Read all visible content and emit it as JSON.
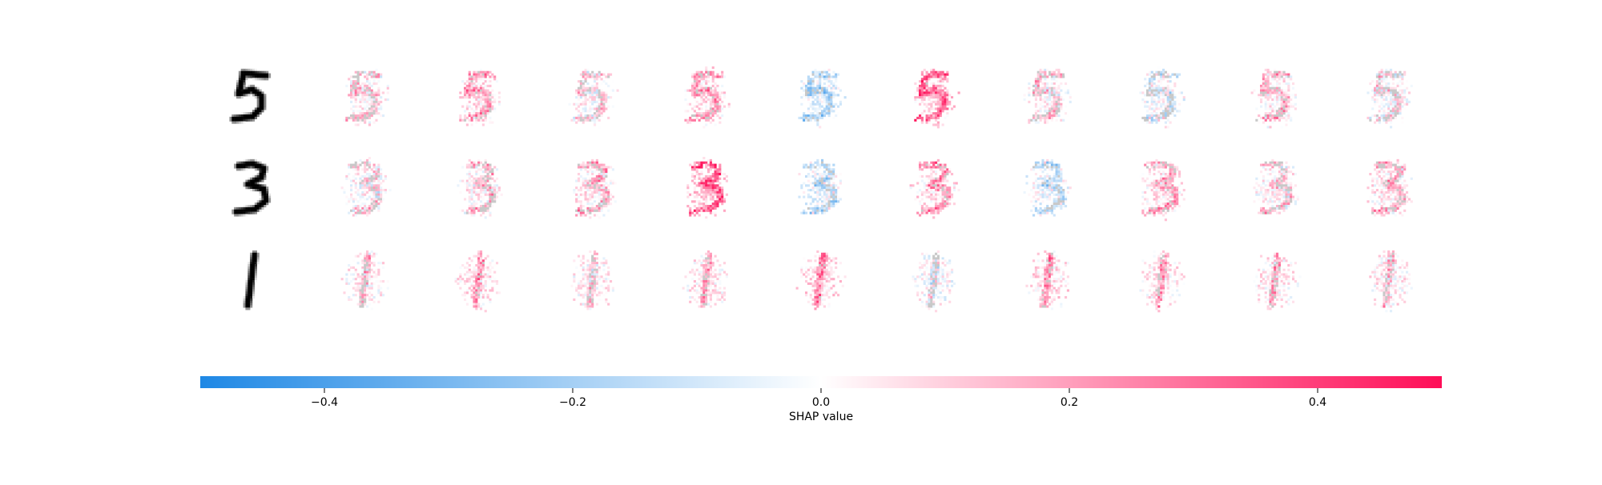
{
  "chart_data": {
    "type": "heatmap",
    "subtype": "shap-image-explanation",
    "rows": [
      {
        "digit": "5",
        "panels": 10,
        "mean_shap": [
          0.05,
          0.09,
          0.03,
          0.1,
          -0.08,
          0.15,
          0.04,
          -0.02,
          0.06,
          0.02
        ]
      },
      {
        "digit": "3",
        "panels": 10,
        "mean_shap": [
          0.03,
          0.05,
          0.07,
          0.16,
          -0.06,
          0.1,
          -0.05,
          0.08,
          0.04,
          0.06
        ]
      },
      {
        "digit": "1",
        "panels": 10,
        "mean_shap": [
          0.04,
          0.09,
          0.04,
          0.07,
          0.12,
          -0.01,
          0.1,
          0.07,
          0.06,
          0.05
        ]
      }
    ],
    "colorbar": {
      "label": "SHAP value",
      "range": [
        -0.5,
        0.5
      ],
      "ticks": [
        -0.4,
        -0.2,
        0.0,
        0.2,
        0.4
      ],
      "tick_labels": [
        "−0.4",
        "−0.2",
        "0.0",
        "0.2",
        "0.4"
      ],
      "colors": {
        "negative": "#1e88e5",
        "neutral": "#ffffff",
        "positive": "#ff0d57"
      },
      "placement": "bottom"
    }
  }
}
